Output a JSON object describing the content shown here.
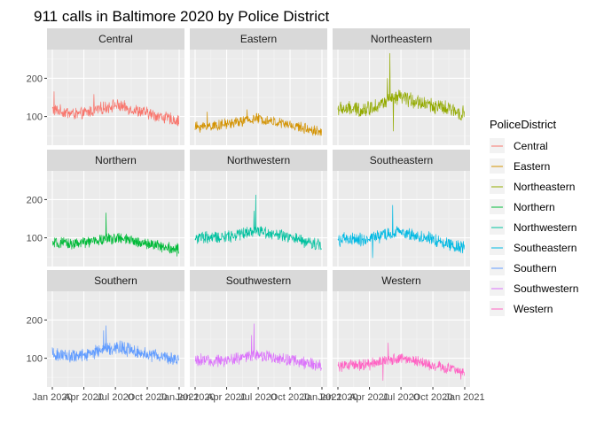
{
  "chart_data": {
    "type": "line",
    "title": "911 calls in Baltimore 2020 by Police District",
    "xlabel": "",
    "ylabel": "",
    "x_range": [
      "2020-01-01",
      "2021-01-01"
    ],
    "x_ticks": [
      "Jan 2020",
      "Apr 2020",
      "Jul 2020",
      "Oct 2020",
      "Jan 2021"
    ],
    "x_tick_days": [
      0,
      91,
      182,
      274,
      366
    ],
    "ylim": [
      25,
      275
    ],
    "y_ticks": [
      100,
      200
    ],
    "y_tick_labels": [
      "100",
      "200"
    ],
    "legend_title": "PoliceDistrict",
    "legend_position": "right",
    "grid": true,
    "panels": [
      {
        "name": "Central",
        "color": "#F8766D",
        "start": 118,
        "jan_end": 105,
        "jul_level": 130,
        "dec_level": 88,
        "noise": 14,
        "spikes": [
          [
            5,
            165
          ],
          [
            120,
            158
          ]
        ]
      },
      {
        "name": "Eastern",
        "color": "#D39200",
        "start": 72,
        "jan_end": 78,
        "jul_level": 95,
        "dec_level": 60,
        "noise": 12,
        "spikes": [
          [
            35,
            112
          ],
          [
            150,
            118
          ]
        ]
      },
      {
        "name": "Northeastern",
        "color": "#93AA00",
        "start": 120,
        "jan_end": 118,
        "jul_level": 150,
        "dec_level": 108,
        "noise": 17,
        "spikes": [
          [
            150,
            265
          ],
          [
            143,
            200
          ],
          [
            160,
            62
          ]
        ]
      },
      {
        "name": "Northern",
        "color": "#00BA38",
        "start": 85,
        "jan_end": 85,
        "jul_level": 100,
        "dec_level": 70,
        "noise": 13,
        "spikes": [
          [
            155,
            165
          ],
          [
            360,
            52
          ]
        ]
      },
      {
        "name": "Northwestern",
        "color": "#00C19F",
        "start": 100,
        "jan_end": 100,
        "jul_level": 120,
        "dec_level": 80,
        "noise": 14,
        "spikes": [
          [
            175,
            212
          ],
          [
            170,
            170
          ]
        ]
      },
      {
        "name": "Southeastern",
        "color": "#00B9E3",
        "start": 95,
        "jan_end": 95,
        "jul_level": 115,
        "dec_level": 75,
        "noise": 15,
        "spikes": [
          [
            158,
            185
          ],
          [
            100,
            48
          ]
        ]
      },
      {
        "name": "Southern",
        "color": "#619CFF",
        "start": 110,
        "jan_end": 105,
        "jul_level": 130,
        "dec_level": 95,
        "noise": 15,
        "spikes": [
          [
            155,
            185
          ],
          [
            148,
            172
          ]
        ]
      },
      {
        "name": "Southwestern",
        "color": "#DB72FB",
        "start": 95,
        "jan_end": 92,
        "jul_level": 110,
        "dec_level": 80,
        "noise": 14,
        "spikes": [
          [
            170,
            190
          ],
          [
            163,
            160
          ]
        ]
      },
      {
        "name": "Western",
        "color": "#FF61C3",
        "start": 80,
        "jan_end": 82,
        "jul_level": 100,
        "dec_level": 65,
        "noise": 13,
        "spikes": [
          [
            145,
            140
          ],
          [
            130,
            42
          ],
          [
            355,
            45
          ]
        ]
      }
    ]
  }
}
